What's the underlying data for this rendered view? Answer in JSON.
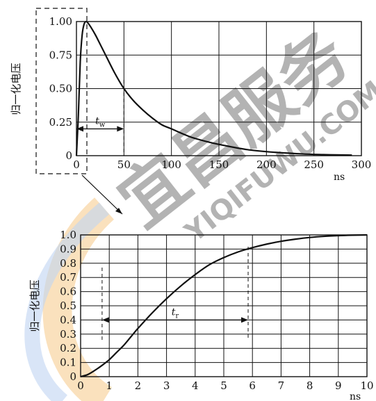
{
  "chart_data": [
    {
      "type": "line",
      "title": "",
      "ylabel": "归一化电压",
      "xlabel": "",
      "x_unit": "ns",
      "xlim": [
        0,
        300
      ],
      "ylim": [
        0,
        1.0
      ],
      "x_ticks": [
        0,
        50,
        100,
        150,
        200,
        250,
        300
      ],
      "y_ticks": [
        0,
        0.25,
        0.5,
        0.75,
        1.0
      ],
      "x_tick_labels": [
        "0",
        "50",
        "100",
        "150",
        "200",
        "250",
        "300"
      ],
      "y_tick_labels": [
        "0",
        "0.25",
        "0.50",
        "0.75",
        "1.00"
      ],
      "grid": true,
      "series": [
        {
          "x": [
            0,
            2,
            4,
            6,
            8,
            10,
            12,
            15,
            20,
            25,
            30,
            40,
            50,
            60,
            70,
            80,
            90,
            100,
            120,
            140,
            160,
            180,
            200,
            220,
            240,
            260,
            280,
            290
          ],
          "y": [
            0,
            0.3,
            0.7,
            0.9,
            0.98,
            1.0,
            0.99,
            0.96,
            0.9,
            0.83,
            0.76,
            0.62,
            0.5,
            0.41,
            0.34,
            0.28,
            0.23,
            0.2,
            0.14,
            0.1,
            0.07,
            0.045,
            0.03,
            0.02,
            0.012,
            0.008,
            0.005,
            0.004
          ]
        }
      ],
      "annotation": {
        "label": "t",
        "subscript": "w",
        "from_x": 0,
        "to_x": 50,
        "at_y": 0.2
      }
    },
    {
      "type": "line",
      "title": "",
      "ylabel": "归一化电压",
      "xlabel": "",
      "x_unit": "ns",
      "xlim": [
        0,
        10
      ],
      "ylim": [
        0,
        1.0
      ],
      "x_ticks": [
        0,
        1,
        2,
        3,
        4,
        5,
        6,
        7,
        8,
        9,
        10
      ],
      "y_ticks": [
        0,
        0.1,
        0.2,
        0.3,
        0.4,
        0.5,
        0.6,
        0.7,
        0.8,
        0.9,
        1.0
      ],
      "x_tick_labels": [
        "0",
        "1",
        "2",
        "3",
        "4",
        "5",
        "6",
        "7",
        "8",
        "9",
        "10"
      ],
      "y_tick_labels": [
        "0",
        "0.1",
        "0.2",
        "0.3",
        "0.4",
        "0.5",
        "0.6",
        "0.7",
        "0.8",
        "0.9",
        "1.0"
      ],
      "grid": true,
      "series": [
        {
          "x": [
            0,
            0.25,
            0.5,
            0.75,
            1,
            1.25,
            1.5,
            1.75,
            2,
            2.5,
            3,
            3.5,
            4,
            4.5,
            5,
            5.5,
            6,
            6.5,
            7,
            7.5,
            8,
            8.5,
            9,
            9.5,
            10
          ],
          "y": [
            0,
            0.015,
            0.045,
            0.08,
            0.12,
            0.17,
            0.22,
            0.28,
            0.34,
            0.45,
            0.55,
            0.64,
            0.72,
            0.79,
            0.84,
            0.88,
            0.91,
            0.935,
            0.955,
            0.97,
            0.982,
            0.99,
            0.995,
            0.998,
            1.0
          ]
        }
      ],
      "annotation": {
        "label": "t",
        "subscript": "r",
        "from_x": 0.75,
        "to_x": 5.85,
        "at_y": 0.4
      }
    }
  ],
  "watermark": {
    "text_cn": "宜昌服务",
    "text_en": "YIQIFUWU.COM"
  }
}
